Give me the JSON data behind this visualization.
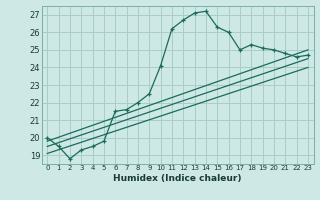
{
  "xlabel": "Humidex (Indice chaleur)",
  "ylabel": "",
  "bg_color": "#cde8e5",
  "grid_color": "#a8ceca",
  "line_color": "#1a6b5a",
  "xlim": [
    -0.5,
    23.5
  ],
  "ylim": [
    18.5,
    27.5
  ],
  "yticks": [
    19,
    20,
    21,
    22,
    23,
    24,
    25,
    26,
    27
  ],
  "xticks": [
    0,
    1,
    2,
    3,
    4,
    5,
    6,
    7,
    8,
    9,
    10,
    11,
    12,
    13,
    14,
    15,
    16,
    17,
    18,
    19,
    20,
    21,
    22,
    23
  ],
  "series1_x": [
    0,
    1,
    2,
    3,
    4,
    5,
    6,
    7,
    8,
    9,
    10,
    11,
    12,
    13,
    14,
    15,
    16,
    17,
    18,
    19,
    20,
    21,
    22,
    23
  ],
  "series1_y": [
    20.0,
    19.5,
    18.8,
    19.3,
    19.5,
    19.8,
    21.5,
    21.6,
    22.0,
    22.5,
    24.1,
    26.2,
    26.7,
    27.1,
    27.2,
    26.3,
    26.0,
    25.0,
    25.3,
    25.1,
    25.0,
    24.8,
    24.6,
    24.7
  ],
  "series2_x": [
    0,
    23
  ],
  "series2_y": [
    19.8,
    25.0
  ],
  "series3_x": [
    0,
    23
  ],
  "series3_y": [
    19.5,
    24.5
  ],
  "series4_x": [
    0,
    23
  ],
  "series4_y": [
    19.1,
    24.0
  ]
}
